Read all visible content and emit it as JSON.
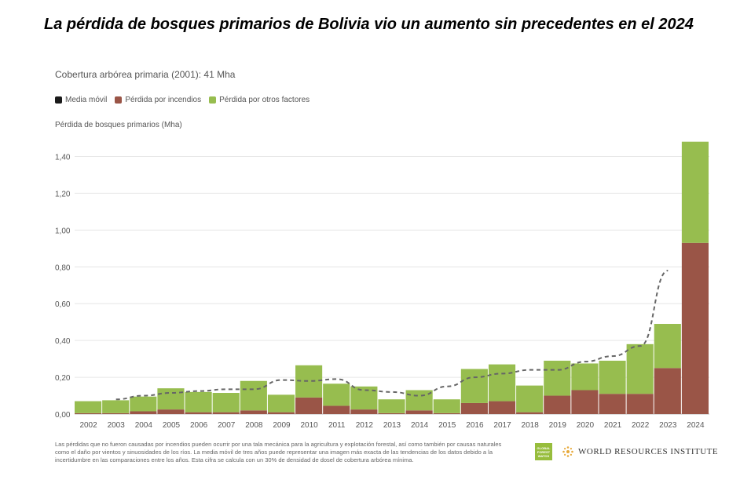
{
  "headline": "La pérdida de bosques primarios de Bolivia vio un aumento sin precedentes en el 2024",
  "subtitle": "Cobertura arbórea primaria (2001): 41 Mha",
  "legend": [
    {
      "label": "Media móvil",
      "color": "#1a1a1a"
    },
    {
      "label": "Pérdida por incendios",
      "color": "#9a5547"
    },
    {
      "label": "Pérdida por otros factores",
      "color": "#97bd4f"
    }
  ],
  "chart_data": {
    "type": "bar",
    "stacked": true,
    "ylabel": "Pérdida de bosques primarios (Mha)",
    "ylim": [
      0,
      1.5
    ],
    "yticks": [
      0.0,
      0.2,
      0.4,
      0.6,
      0.8,
      1.0,
      1.2,
      1.4
    ],
    "ytick_labels": [
      "0,00",
      "0,20",
      "0,40",
      "0,60",
      "0,80",
      "1,00",
      "1,20",
      "1,40"
    ],
    "grid": true,
    "categories": [
      "2002",
      "2003",
      "2004",
      "2005",
      "2006",
      "2007",
      "2008",
      "2009",
      "2010",
      "2011",
      "2012",
      "2013",
      "2014",
      "2015",
      "2016",
      "2017",
      "2018",
      "2019",
      "2020",
      "2021",
      "2022",
      "2023",
      "2024"
    ],
    "series": [
      {
        "name": "Pérdida por incendios",
        "color": "#9a5547",
        "values": [
          0.005,
          0.005,
          0.015,
          0.025,
          0.01,
          0.01,
          0.02,
          0.01,
          0.09,
          0.045,
          0.025,
          0.005,
          0.02,
          0.005,
          0.06,
          0.07,
          0.01,
          0.1,
          0.13,
          0.11,
          0.11,
          0.25,
          0.93
        ]
      },
      {
        "name": "Pérdida por otros factores",
        "color": "#97bd4f",
        "values": [
          0.065,
          0.07,
          0.08,
          0.115,
          0.11,
          0.105,
          0.16,
          0.095,
          0.175,
          0.12,
          0.125,
          0.075,
          0.11,
          0.075,
          0.185,
          0.2,
          0.145,
          0.19,
          0.145,
          0.18,
          0.27,
          0.24,
          0.55
        ]
      }
    ],
    "moving_average": {
      "name": "Media móvil",
      "color": "#666666",
      "x": [
        "2003",
        "2004",
        "2005",
        "2006",
        "2007",
        "2008",
        "2009",
        "2010",
        "2011",
        "2012",
        "2013",
        "2014",
        "2015",
        "2016",
        "2017",
        "2018",
        "2019",
        "2020",
        "2021",
        "2022",
        "2023"
      ],
      "values": [
        0.08,
        0.1,
        0.115,
        0.125,
        0.135,
        0.135,
        0.185,
        0.18,
        0.19,
        0.13,
        0.12,
        0.1,
        0.15,
        0.2,
        0.22,
        0.24,
        0.24,
        0.285,
        0.315,
        0.37,
        0.78
      ]
    }
  },
  "footnote": "Las pérdidas que no fueron causadas por incendios pueden ocurrir por una tala mecánica para la agricultura y explotación forestal, así como también por causas naturales como el daño por vientos y sinuosidades de los ríos. La media móvil de tres años puede representar una imagen más exacta de las tendencias de los datos debido a la incertidumbre en las comparaciones entre los años. Esta cifra se calcula con un 30% de densidad de dosel de cobertura arbórea mínima.",
  "logos": {
    "gfw": "GLOBAL FOREST WATCH",
    "wri": "WORLD RESOURCES INSTITUTE",
    "gfw_color": "#97bd3d",
    "wri_color": "#e7a93a"
  }
}
